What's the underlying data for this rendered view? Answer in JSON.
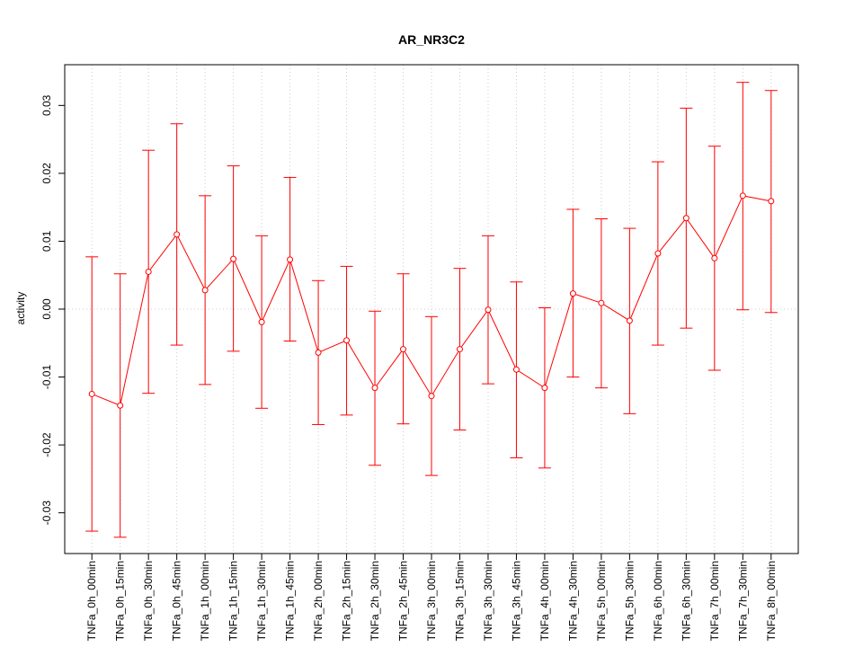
{
  "chart_data": {
    "type": "line",
    "title": "AR_NR3C2",
    "xlabel": "",
    "ylabel": "activity",
    "categories": [
      "TNFa_0h_00min",
      "TNFa_0h_15min",
      "TNFa_0h_30min",
      "TNFa_0h_45min",
      "TNFa_1h_00min",
      "TNFa_1h_15min",
      "TNFa_1h_30min",
      "TNFa_1h_45min",
      "TNFa_2h_00min",
      "TNFa_2h_15min",
      "TNFa_2h_30min",
      "TNFa_2h_45min",
      "TNFa_3h_00min",
      "TNFa_3h_15min",
      "TNFa_3h_30min",
      "TNFa_3h_45min",
      "TNFa_4h_00min",
      "TNFa_4h_30min",
      "TNFa_5h_00min",
      "TNFa_5h_30min",
      "TNFa_6h_00min",
      "TNFa_6h_30min",
      "TNFa_7h_00min",
      "TNFa_7h_30min",
      "TNFa_8h_00min"
    ],
    "series": [
      {
        "values": [
          -0.0125,
          -0.0142,
          0.0055,
          0.011,
          0.0028,
          0.0074,
          -0.0019,
          0.0073,
          -0.0064,
          -0.0046,
          -0.0116,
          -0.0059,
          -0.0128,
          -0.0059,
          -0.0001,
          -0.0089,
          -0.0116,
          0.0023,
          0.0009,
          -0.0017,
          0.0082,
          0.0134,
          0.0075,
          0.0167,
          0.0159
        ],
        "upper": [
          0.0077,
          0.0052,
          0.0234,
          0.0273,
          0.0167,
          0.0211,
          0.0108,
          0.0194,
          0.0042,
          0.0063,
          -0.0003,
          0.0052,
          -0.0011,
          0.006,
          0.0108,
          0.004,
          0.0002,
          0.0147,
          0.0133,
          0.0119,
          0.0217,
          0.0296,
          0.024,
          0.0334,
          0.0322
        ],
        "lower": [
          -0.0327,
          -0.0336,
          -0.0124,
          -0.0053,
          -0.0111,
          -0.0062,
          -0.0146,
          -0.0047,
          -0.017,
          -0.0156,
          -0.023,
          -0.0169,
          -0.0245,
          -0.0178,
          -0.011,
          -0.0219,
          -0.0234,
          -0.01,
          -0.0116,
          -0.0154,
          -0.0053,
          -0.0028,
          -0.009,
          -0.0001,
          -0.0005
        ],
        "color": "#ff0000"
      }
    ],
    "ylim": [
      -0.036,
      0.036
    ],
    "yticks": [
      -0.03,
      -0.02,
      -0.01,
      0.0,
      0.01,
      0.02,
      0.03
    ],
    "ytick_labels": [
      "-0.03",
      "-0.02",
      "-0.01",
      "0.00",
      "0.01",
      "0.02",
      "0.03"
    ],
    "grid": true,
    "grid_color": "#cccccc",
    "hline_at": 0
  }
}
